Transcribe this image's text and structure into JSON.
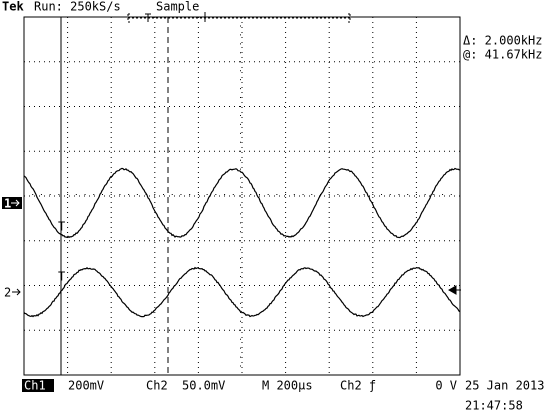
{
  "header": {
    "brand": "Tek",
    "status": "Run: 250kS/s",
    "mode": "Sample"
  },
  "cursor": {
    "delta": "Δ: 2.000kHz",
    "at": "@: 41.67kHz"
  },
  "markers": {
    "ch1": "1",
    "ch2": "2"
  },
  "footer": {
    "ch1": "Ch1",
    "ch1_scale": "200mV",
    "ch2": "Ch2",
    "ch2_scale": "50.0mV",
    "timebase": "M 200µs",
    "trigger": "Ch2 ƒ",
    "level": "0 V",
    "date": "25 Jan 2013",
    "time": "21:47:58"
  }
}
